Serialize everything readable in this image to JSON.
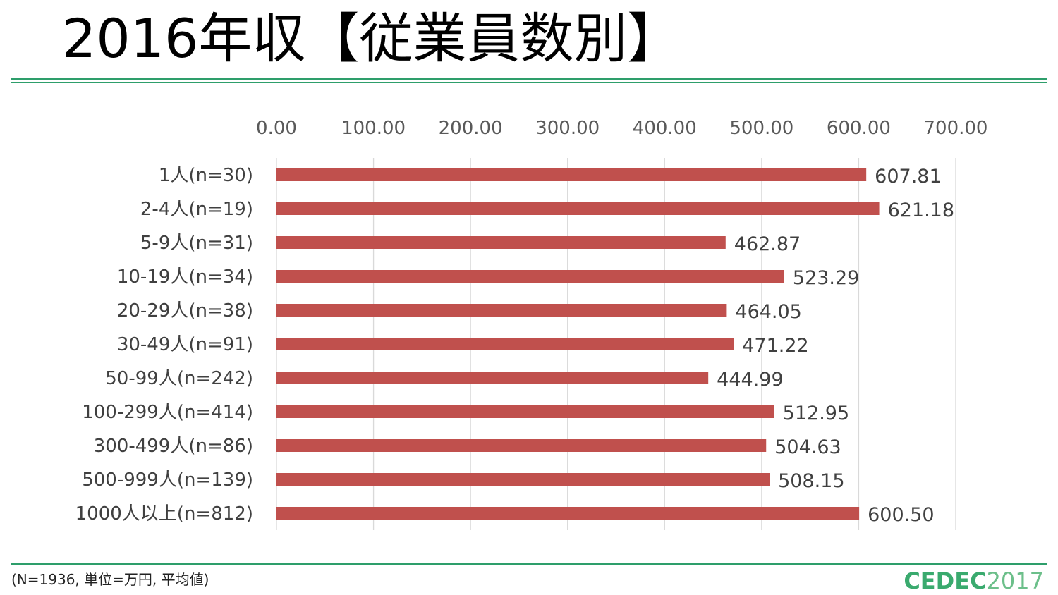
{
  "slide": {
    "title": "2016年収【従業員数別】",
    "footnote": "(N=1936, 単位=万円, 平均値)",
    "logo_main": "CEDEC",
    "logo_year": "2017"
  },
  "colors": {
    "accent_rule": "#2e9e6b",
    "bar": "#c0504d",
    "grid": "#d9d9d9",
    "axis_text": "#595959",
    "label_text": "#404040",
    "logo_main": "#3aaa6e",
    "logo_year": "#6cbf8a"
  },
  "chart_data": {
    "type": "bar",
    "orientation": "horizontal",
    "categories": [
      "1人(n=30)",
      "2-4人(n=19)",
      "5-9人(n=31)",
      "10-19人(n=34)",
      "20-29人(n=38)",
      "30-49人(n=91)",
      "50-99人(n=242)",
      "100-299人(n=414)",
      "300-499人(n=86)",
      "500-999人(n=139)",
      "1000人以上(n=812)"
    ],
    "values": [
      607.81,
      621.18,
      462.87,
      523.29,
      464.05,
      471.22,
      444.99,
      512.95,
      504.63,
      508.15,
      600.5
    ],
    "value_labels": [
      "607.81",
      "621.18",
      "462.87",
      "523.29",
      "464.05",
      "471.22",
      "444.99",
      "512.95",
      "504.63",
      "508.15",
      "600.50"
    ],
    "xlim": [
      0,
      700
    ],
    "x_ticks": [
      0,
      100,
      200,
      300,
      400,
      500,
      600,
      700
    ],
    "x_tick_labels": [
      "0.00",
      "100.00",
      "200.00",
      "300.00",
      "400.00",
      "500.00",
      "600.00",
      "700.00"
    ],
    "x_axis_position": "top",
    "grid": true,
    "legend": false,
    "title": "",
    "xlabel": "",
    "ylabel": ""
  }
}
